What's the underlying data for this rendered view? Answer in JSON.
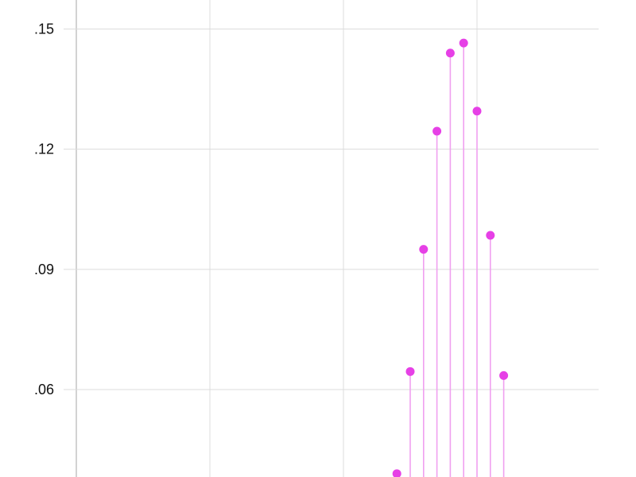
{
  "chart_data": {
    "type": "scatter",
    "style": "stem",
    "title": "",
    "xlabel": "",
    "ylabel": "",
    "marker_color": "#e640e6",
    "stem_color": "#f0a0f0",
    "grid": true,
    "legend": "none",
    "ylim": [
      0.0375,
      0.1575
    ],
    "xlim": [
      0,
      39
    ],
    "y_ticks": [
      0.06,
      0.09,
      0.12,
      0.15
    ],
    "y_tick_labels": [
      ".06",
      ".09",
      ".12",
      ".15"
    ],
    "x_gridlines": [
      0,
      10,
      20,
      30
    ],
    "series": [
      {
        "x": [
          24,
          25,
          26,
          27,
          28,
          29,
          30,
          31,
          32
        ],
        "y": [
          0.039,
          0.0645,
          0.095,
          0.1245,
          0.144,
          0.1465,
          0.1295,
          0.0985,
          0.0635
        ]
      }
    ]
  }
}
